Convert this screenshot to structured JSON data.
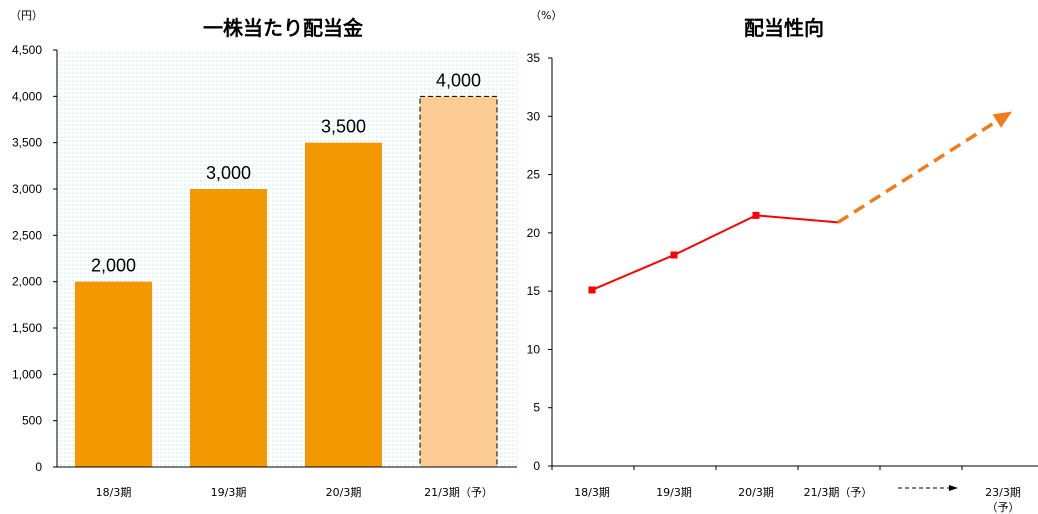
{
  "chart_data": [
    {
      "type": "bar",
      "title": "一株当たり配当金",
      "unit_label": "（円）",
      "categories": [
        "18/3期",
        "19/3期",
        "20/3期",
        "21/3期（予）"
      ],
      "values": [
        2000,
        3000,
        3500,
        4000
      ],
      "data_labels": [
        "2,000",
        "3,000",
        "3,500",
        "4,000"
      ],
      "forecast": [
        false,
        false,
        false,
        true
      ],
      "ylim": [
        0,
        4500
      ],
      "yticks": [
        0,
        500,
        1000,
        1500,
        2000,
        2500,
        3000,
        3500,
        4000,
        4500
      ],
      "ytick_labels": [
        "0",
        "500",
        "1,000",
        "1,500",
        "2,000",
        "2,500",
        "3,000",
        "3,500",
        "4,000",
        "4,500"
      ],
      "colors": {
        "bar": "#f39800",
        "forecast_bar": "#fdcb94",
        "plot_background": "#eafafa"
      }
    },
    {
      "type": "line",
      "title": "配当性向",
      "unit_label": "（%）",
      "categories": [
        "18/3期",
        "19/3期",
        "20/3期",
        "21/3期（予）",
        "23/3期（予）"
      ],
      "category_lines": [
        [
          "18/3期"
        ],
        [
          "19/3期"
        ],
        [
          "20/3期"
        ],
        [
          "21/3期（予）"
        ],
        [
          "23/3期",
          "（予）"
        ]
      ],
      "series": [
        {
          "values": [
            15.1,
            18.1,
            21.5,
            20.9,
            null
          ]
        }
      ],
      "trend": {
        "from_category": "21/3期（予）",
        "from_value": 20.9,
        "to_category": "23/3期（予）",
        "to_value": 30.5,
        "style": "dashed-arrow"
      },
      "ylim": [
        0,
        35
      ],
      "yticks": [
        0,
        5,
        10,
        15,
        20,
        25,
        30,
        35
      ],
      "ytick_labels": [
        "0",
        "5",
        "10",
        "15",
        "20",
        "25",
        "30",
        "35"
      ],
      "colors": {
        "line": "#ff0000",
        "trend": "#f07d1d",
        "axis_arrow": "#000000"
      }
    }
  ]
}
